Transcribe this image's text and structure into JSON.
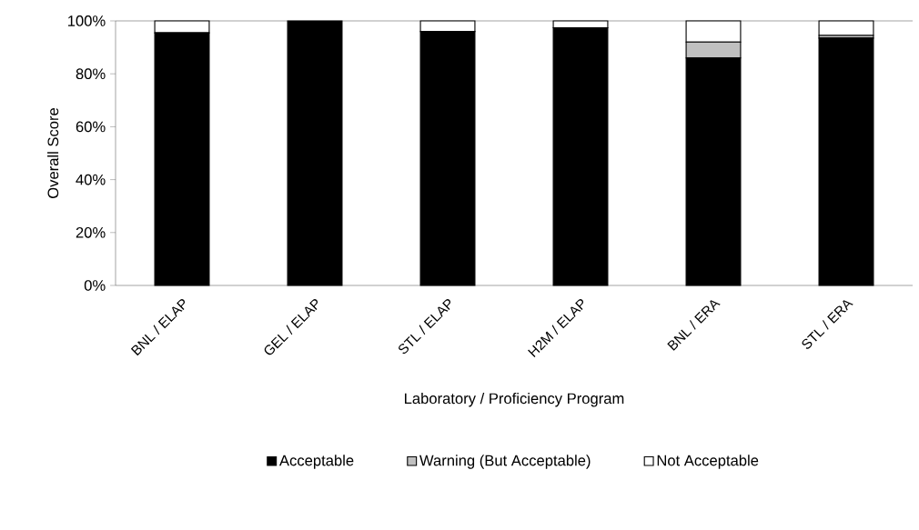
{
  "chart_data": {
    "type": "bar",
    "stacked": true,
    "xlabel": "Laboratory / Proficiency Program",
    "ylabel": "Overall Score",
    "categories": [
      "BNL / ELAP",
      "GEL / ELAP",
      "STL / ELAP",
      "H2M / ELAP",
      "BNL / ERA",
      "STL / ERA"
    ],
    "series": [
      {
        "name": "Acceptable",
        "color": "#000000",
        "values": [
          95.5,
          100,
          96,
          97.4,
          86,
          93.5
        ]
      },
      {
        "name": "Warning (But Acceptable)",
        "color": "#c0c0c0",
        "values": [
          0,
          0,
          0,
          0,
          6,
          1
        ]
      },
      {
        "name": "Not Acceptable",
        "color": "#ffffff",
        "values": [
          4.5,
          0,
          4,
          2.6,
          8,
          5.5
        ]
      }
    ],
    "ylim": [
      0,
      100
    ],
    "yticks": [
      {
        "value": 0,
        "label": "0%"
      },
      {
        "value": 20,
        "label": "20%"
      },
      {
        "value": 40,
        "label": "40%"
      },
      {
        "value": 60,
        "label": "60%"
      },
      {
        "value": 80,
        "label": "80%"
      },
      {
        "value": 100,
        "label": "100%"
      }
    ],
    "grid": false,
    "legend": "bottom"
  }
}
